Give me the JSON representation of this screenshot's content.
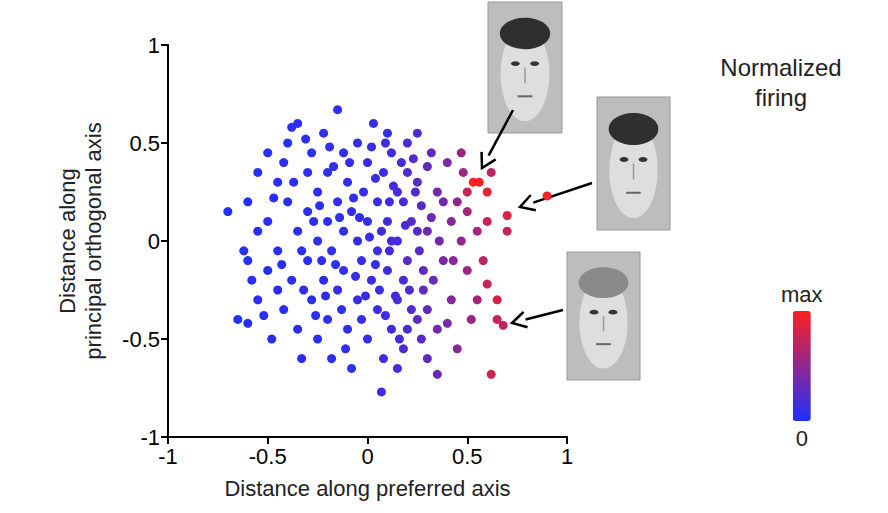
{
  "chart_data": {
    "type": "scatter",
    "x_label": "Distance along preferred axis",
    "y_label": "Distance along principal orthogonal axis",
    "xlim": [
      -1,
      1
    ],
    "ylim": [
      -1,
      1
    ],
    "xticks": [
      -1,
      -0.5,
      0,
      0.5,
      1
    ],
    "yticks": [
      -1,
      -0.5,
      0,
      0.5,
      1
    ],
    "grid": false,
    "marker": "circle",
    "x": [
      -0.7,
      -0.62,
      -0.6,
      -0.65,
      -0.6,
      -0.55,
      -0.55,
      -0.5,
      -0.5,
      -0.48,
      -0.45,
      -0.45,
      -0.42,
      -0.4,
      -0.38,
      -0.35,
      -0.4,
      -0.38,
      -0.35,
      -0.35,
      -0.33,
      -0.3,
      -0.3,
      -0.3,
      -0.28,
      -0.28,
      -0.25,
      -0.25,
      -0.25,
      -0.22,
      -0.22,
      -0.2,
      -0.2,
      -0.2,
      -0.18,
      -0.18,
      -0.15,
      -0.15,
      -0.15,
      -0.12,
      -0.12,
      -0.12,
      -0.1,
      -0.1,
      -0.08,
      -0.08,
      -0.05,
      -0.05,
      -0.05,
      -0.03,
      -0.02,
      0,
      0,
      0,
      0.02,
      0.03,
      0.05,
      0.05,
      0.05,
      0.07,
      0.08,
      0.08,
      0.1,
      0.1,
      0.12,
      0.12,
      0.15,
      0.15,
      0.18,
      0.18,
      0.2,
      0.22,
      0.25,
      0.25,
      0.28,
      -0.45,
      -0.55,
      -0.5,
      -0.42,
      -0.32,
      -0.27,
      -0.23,
      -0.17,
      -0.13,
      -0.07,
      -0.03,
      0.01,
      0.04,
      0.06,
      0.09,
      0.11,
      0.13,
      0.16,
      0.19,
      0.21,
      0.23,
      0.26,
      0.27,
      0.3,
      0.32,
      -0.6,
      -0.58,
      -0.52,
      -0.47,
      -0.43,
      -0.37,
      -0.33,
      -0.31,
      -0.26,
      -0.24,
      -0.21,
      -0.19,
      -0.16,
      -0.14,
      -0.11,
      -0.09,
      -0.06,
      -0.04,
      -0.01,
      0.02,
      0.04,
      0.07,
      0.09,
      0.11,
      0.14,
      0.17,
      0.2,
      0.24,
      0.27,
      0.3,
      0.33,
      0.36,
      0.38,
      0.4,
      0.43,
      0.53,
      0.56,
      0.6,
      0.5,
      0.9,
      0.7,
      0.68,
      0.62,
      0.65,
      0.6,
      0.7,
      0.62,
      0.48,
      0.47,
      0.65,
      0.55,
      0.58,
      0.6,
      0.55,
      0.5,
      0.52,
      0.45,
      0.5,
      0.47,
      0.42,
      0.45,
      0.4,
      0.42,
      0.38,
      0.35,
      0.35,
      0.3,
      0.35,
      0.3,
      0.32,
      0.28,
      0.25,
      0.25,
      0.22,
      0.2,
      0.2,
      0.18,
      0.15,
      0.15,
      0.12,
      0.1
    ],
    "y": [
      0.15,
      -0.05,
      -0.1,
      -0.4,
      -0.42,
      -0.3,
      0.35,
      0.1,
      -0.15,
      -0.5,
      0.3,
      -0.05,
      -0.35,
      0.5,
      0.58,
      0.6,
      0.2,
      -0.2,
      0.05,
      -0.45,
      -0.6,
      0.35,
      -0.1,
      0.15,
      -0.3,
      0.45,
      0,
      -0.5,
      0.25,
      -0.2,
      0.55,
      0.1,
      -0.4,
      0.35,
      -0.05,
      -0.6,
      0.67,
      0.2,
      -0.25,
      0.45,
      -0.15,
      0.05,
      -0.45,
      0.3,
      -0.65,
      0.15,
      -0.3,
      0.5,
      0,
      -0.1,
      0.25,
      -0.5,
      0.4,
      0.1,
      -0.2,
      0.6,
      -0.35,
      0.2,
      -0.05,
      -0.77,
      0.35,
      -0.6,
      -0.15,
      0.1,
      -0.45,
      0.45,
      0,
      -0.65,
      0.2,
      -0.2,
      0.35,
      -0.35,
      0.05,
      0.55,
      -0.15,
      -0.25,
      0.05,
      0.45,
      0.4,
      -0.25,
      0.1,
      -0.1,
      0.38,
      -0.35,
      0.22,
      -0.4,
      0.02,
      0.32,
      -0.25,
      0.5,
      -0.05,
      0.28,
      -0.5,
      0.08,
      -0.25,
      0.42,
      -0.05,
      0.18,
      -0.35,
      0.12,
      0.2,
      -0.2,
      -0.38,
      0.22,
      -0.12,
      0.3,
      -0.05,
      0.52,
      -0.38,
      0.18,
      -0.28,
      0.48,
      -0.12,
      0.12,
      -0.55,
      0.4,
      -0.18,
      0.12,
      -0.28,
      0.48,
      -0.12,
      0.05,
      -0.38,
      0.2,
      -0.28,
      0.4,
      -0.45,
      0.25,
      -0.5,
      0.38,
      -0.2,
      0,
      0.2,
      -0.42,
      -0.1,
      0.3,
      0.3,
      0.25,
      0.25,
      0.23,
      0.13,
      -0.43,
      -0.68,
      -0.3,
      -0.22,
      0.05,
      0.35,
      0.35,
      0.45,
      -0.4,
      -0.3,
      -0.1,
      0.1,
      0.05,
      -0.15,
      -0.4,
      -0.55,
      0.15,
      0,
      -0.3,
      0.2,
      0.4,
      0.1,
      -0.1,
      0.25,
      -0.45,
      -0.6,
      -0.68,
      0.05,
      0.45,
      -0.25,
      0.3,
      -0.4,
      0.1,
      -0.1,
      0.5,
      -0.55,
      0.25,
      -0.3,
      0,
      0.55
    ],
    "firing": [
      0.02,
      0.03,
      0.02,
      0.02,
      0.03,
      0.03,
      0.03,
      0.04,
      0.03,
      0.04,
      0.04,
      0.05,
      0.04,
      0.05,
      0.04,
      0.05,
      0.05,
      0.05,
      0.06,
      0.05,
      0.05,
      0.06,
      0.06,
      0.06,
      0.06,
      0.06,
      0.07,
      0.06,
      0.07,
      0.07,
      0.07,
      0.07,
      0.07,
      0.08,
      0.08,
      0.07,
      0.08,
      0.08,
      0.08,
      0.08,
      0.09,
      0.09,
      0.09,
      0.09,
      0.08,
      0.1,
      0.1,
      0.1,
      0.1,
      0.1,
      0.11,
      0.1,
      0.11,
      0.11,
      0.12,
      0.11,
      0.12,
      0.12,
      0.13,
      0.12,
      0.13,
      0.12,
      0.14,
      0.14,
      0.14,
      0.14,
      0.16,
      0.15,
      0.18,
      0.18,
      0.2,
      0.22,
      0.25,
      0.22,
      0.28,
      0.04,
      0.03,
      0.04,
      0.05,
      0.06,
      0.06,
      0.07,
      0.08,
      0.08,
      0.09,
      0.1,
      0.11,
      0.12,
      0.12,
      0.13,
      0.14,
      0.15,
      0.16,
      0.18,
      0.2,
      0.22,
      0.25,
      0.26,
      0.3,
      0.32,
      0.02,
      0.03,
      0.03,
      0.04,
      0.05,
      0.05,
      0.06,
      0.06,
      0.06,
      0.07,
      0.07,
      0.08,
      0.08,
      0.08,
      0.08,
      0.09,
      0.1,
      0.1,
      0.11,
      0.11,
      0.12,
      0.13,
      0.13,
      0.14,
      0.15,
      0.17,
      0.2,
      0.24,
      0.26,
      0.3,
      0.33,
      0.36,
      0.38,
      0.4,
      0.45,
      1,
      0.97,
      0.9,
      0.75,
      0.95,
      0.85,
      0.7,
      0.8,
      0.8,
      0.75,
      0.75,
      0.7,
      0.55,
      0.55,
      0.75,
      0.6,
      0.7,
      0.75,
      0.6,
      0.55,
      0.55,
      0.45,
      0.6,
      0.5,
      0.45,
      0.5,
      0.4,
      0.45,
      0.4,
      0.38,
      0.38,
      0.3,
      0.32,
      0.35,
      0.3,
      0.3,
      0.28,
      0.27,
      0.25,
      0.25,
      0.2,
      0.2,
      0.18,
      0.18,
      0.15,
      0.1
    ],
    "colorbar": {
      "title": "Normalized firing",
      "range": [
        0,
        1
      ],
      "ticks": [
        0,
        {
          "value": 1,
          "label": "max"
        }
      ],
      "colors": [
        "#1f2fff",
        "#ff1f1f"
      ]
    }
  }
}
